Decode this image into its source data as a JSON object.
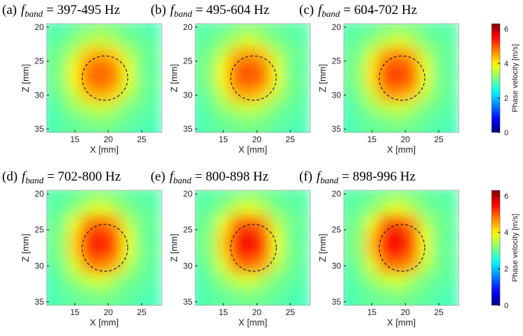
{
  "chart_data": [
    {
      "type": "heatmap",
      "label": "(a)",
      "title_symbol": "f",
      "title_subscript": "band",
      "title_text": "= 397-495 Hz",
      "xlabel": "X [mm]",
      "ylabel": "Z [mm]",
      "xlim": [
        10.8,
        28
      ],
      "ylim": [
        19.5,
        35.5
      ],
      "y_reversed": true,
      "xticks": [
        15,
        20,
        25
      ],
      "yticks": [
        20,
        25,
        30,
        35
      ],
      "clim": [
        0,
        6.3
      ],
      "x": [
        11,
        13,
        15,
        17,
        19,
        21,
        23,
        25,
        27
      ],
      "y": [
        20,
        22,
        24,
        26,
        28,
        30,
        32,
        34,
        36
      ],
      "values": [
        [
          2.9,
          2.8,
          3.0,
          3.1,
          3.2,
          3.1,
          3.0,
          2.9,
          2.8
        ],
        [
          2.9,
          3.0,
          3.2,
          3.5,
          3.6,
          3.4,
          3.1,
          3.0,
          2.9
        ],
        [
          3.0,
          3.1,
          3.6,
          4.3,
          4.5,
          4.2,
          3.5,
          3.1,
          3.0
        ],
        [
          3.0,
          3.2,
          4.0,
          4.8,
          4.9,
          4.7,
          3.8,
          3.1,
          2.9
        ],
        [
          3.0,
          3.2,
          4.0,
          4.8,
          4.9,
          4.7,
          3.8,
          3.1,
          3.0
        ],
        [
          2.9,
          3.1,
          3.6,
          4.3,
          4.5,
          4.2,
          3.5,
          3.1,
          2.9
        ],
        [
          2.8,
          3.0,
          3.3,
          3.5,
          3.6,
          3.4,
          3.1,
          3.0,
          2.9
        ],
        [
          2.8,
          2.9,
          3.0,
          3.1,
          3.2,
          3.1,
          3.0,
          2.9,
          2.8
        ],
        [
          2.8,
          2.9,
          3.0,
          3.0,
          3.0,
          3.0,
          2.9,
          2.8,
          2.8
        ]
      ]
    },
    {
      "type": "heatmap",
      "label": "(b)",
      "title_symbol": "f",
      "title_subscript": "band",
      "title_text": "= 495-604 Hz",
      "xlabel": "X [mm]",
      "ylabel": "Z [mm]",
      "xlim": [
        10.8,
        28
      ],
      "ylim": [
        19.5,
        35.5
      ],
      "y_reversed": true,
      "xticks": [
        15,
        20,
        25
      ],
      "yticks": [
        20,
        25,
        30,
        35
      ],
      "clim": [
        0,
        6.3
      ],
      "x": [
        11,
        13,
        15,
        17,
        19,
        21,
        23,
        25,
        27
      ],
      "y": [
        20,
        22,
        24,
        26,
        28,
        30,
        32,
        34,
        36
      ],
      "values": [
        [
          2.9,
          2.9,
          3.0,
          3.1,
          3.2,
          3.1,
          3.0,
          2.9,
          2.9
        ],
        [
          2.9,
          3.0,
          3.2,
          3.5,
          3.7,
          3.4,
          3.1,
          3.0,
          2.9
        ],
        [
          3.0,
          3.1,
          3.6,
          4.4,
          4.6,
          4.3,
          3.5,
          3.1,
          3.0
        ],
        [
          3.0,
          3.2,
          4.0,
          4.9,
          5.0,
          4.8,
          3.8,
          3.1,
          2.9
        ],
        [
          3.0,
          3.2,
          4.0,
          4.9,
          5.0,
          4.8,
          3.8,
          3.1,
          3.0
        ],
        [
          2.9,
          3.1,
          3.6,
          4.4,
          4.5,
          4.2,
          3.5,
          3.1,
          2.9
        ],
        [
          2.8,
          3.0,
          3.3,
          3.5,
          3.6,
          3.4,
          3.1,
          3.0,
          2.9
        ],
        [
          2.8,
          2.9,
          3.0,
          3.1,
          3.2,
          3.1,
          3.0,
          2.9,
          2.8
        ],
        [
          2.8,
          2.9,
          3.0,
          3.0,
          3.0,
          3.0,
          2.9,
          2.8,
          2.8
        ]
      ]
    },
    {
      "type": "heatmap",
      "label": "(c)",
      "title_symbol": "f",
      "title_subscript": "band",
      "title_text": "= 604-702 Hz",
      "xlabel": "X [mm]",
      "ylabel": "Z [mm]",
      "xlim": [
        10.8,
        28
      ],
      "ylim": [
        19.5,
        35.5
      ],
      "y_reversed": true,
      "xticks": [
        15,
        20,
        25
      ],
      "yticks": [
        20,
        25,
        30,
        35
      ],
      "clim": [
        0,
        6.3
      ],
      "colorbar": {
        "label": "Phase velocity [m/s]",
        "ticks": [
          0,
          2,
          4,
          6
        ]
      },
      "x": [
        11,
        13,
        15,
        17,
        19,
        21,
        23,
        25,
        27
      ],
      "y": [
        20,
        22,
        24,
        26,
        28,
        30,
        32,
        34,
        36
      ],
      "values": [
        [
          2.9,
          2.9,
          3.0,
          3.1,
          3.2,
          3.1,
          3.0,
          2.9,
          2.9
        ],
        [
          2.9,
          3.0,
          3.2,
          3.5,
          3.7,
          3.5,
          3.1,
          3.0,
          2.9
        ],
        [
          3.0,
          3.1,
          3.7,
          4.5,
          4.7,
          4.4,
          3.5,
          3.1,
          3.0
        ],
        [
          3.0,
          3.2,
          4.1,
          5.0,
          5.1,
          4.9,
          3.8,
          3.1,
          2.9
        ],
        [
          3.0,
          3.2,
          4.1,
          5.0,
          5.1,
          4.9,
          3.8,
          3.1,
          3.0
        ],
        [
          2.9,
          3.1,
          3.6,
          4.5,
          4.6,
          4.3,
          3.5,
          3.1,
          2.9
        ],
        [
          2.8,
          3.0,
          3.3,
          3.5,
          3.6,
          3.4,
          3.1,
          3.0,
          2.9
        ],
        [
          2.8,
          2.9,
          3.0,
          3.1,
          3.2,
          3.1,
          3.0,
          2.9,
          2.8
        ],
        [
          2.8,
          2.9,
          3.0,
          3.0,
          3.0,
          3.0,
          2.9,
          2.8,
          2.8
        ]
      ]
    },
    {
      "type": "heatmap",
      "label": "(d)",
      "title_symbol": "f",
      "title_subscript": "band",
      "title_text": "= 702-800 Hz",
      "xlabel": "X [mm]",
      "ylabel": "Z [mm]",
      "xlim": [
        10.8,
        28
      ],
      "ylim": [
        19.5,
        35.5
      ],
      "y_reversed": true,
      "xticks": [
        15,
        20,
        25
      ],
      "yticks": [
        20,
        25,
        30,
        35
      ],
      "clim": [
        0,
        6.3
      ],
      "x": [
        11,
        13,
        15,
        17,
        19,
        21,
        23,
        25,
        27
      ],
      "y": [
        20,
        22,
        24,
        26,
        28,
        30,
        32,
        34,
        36
      ],
      "values": [
        [
          2.9,
          2.9,
          3.0,
          3.1,
          3.2,
          3.1,
          3.0,
          2.9,
          2.9
        ],
        [
          2.9,
          3.0,
          3.2,
          3.6,
          3.8,
          3.5,
          3.1,
          3.0,
          2.9
        ],
        [
          3.0,
          3.1,
          3.8,
          4.7,
          4.9,
          4.5,
          3.5,
          3.1,
          3.0
        ],
        [
          3.0,
          3.2,
          4.2,
          5.2,
          5.4,
          5.0,
          3.8,
          3.1,
          2.9
        ],
        [
          3.0,
          3.2,
          4.2,
          5.2,
          5.3,
          5.0,
          3.8,
          3.1,
          3.0
        ],
        [
          2.9,
          3.1,
          3.7,
          4.6,
          4.8,
          4.4,
          3.5,
          3.1,
          2.9
        ],
        [
          2.8,
          3.0,
          3.3,
          3.6,
          3.7,
          3.4,
          3.1,
          3.0,
          2.9
        ],
        [
          2.8,
          2.9,
          3.0,
          3.1,
          3.2,
          3.1,
          3.0,
          2.9,
          2.8
        ],
        [
          2.8,
          2.9,
          3.0,
          3.0,
          3.0,
          3.0,
          2.9,
          2.8,
          2.8
        ]
      ]
    },
    {
      "type": "heatmap",
      "label": "(e)",
      "title_symbol": "f",
      "title_subscript": "band",
      "title_text": "= 800-898 Hz",
      "xlabel": "X [mm]",
      "ylabel": "Z [mm]",
      "xlim": [
        10.8,
        28
      ],
      "ylim": [
        19.5,
        35.5
      ],
      "y_reversed": true,
      "xticks": [
        15,
        20,
        25
      ],
      "yticks": [
        20,
        25,
        30,
        35
      ],
      "clim": [
        0,
        6.3
      ],
      "x": [
        11,
        13,
        15,
        17,
        19,
        21,
        23,
        25,
        27
      ],
      "y": [
        20,
        22,
        24,
        26,
        28,
        30,
        32,
        34,
        36
      ],
      "values": [
        [
          2.9,
          2.9,
          3.0,
          3.1,
          3.2,
          3.1,
          3.0,
          2.9,
          2.9
        ],
        [
          2.9,
          3.0,
          3.2,
          3.6,
          3.8,
          3.5,
          3.1,
          3.0,
          2.9
        ],
        [
          3.0,
          3.1,
          3.8,
          4.8,
          5.0,
          4.6,
          3.5,
          3.1,
          3.0
        ],
        [
          3.0,
          3.2,
          4.2,
          5.4,
          5.6,
          5.1,
          3.8,
          3.1,
          2.9
        ],
        [
          3.0,
          3.2,
          4.2,
          5.3,
          5.5,
          5.1,
          3.8,
          3.1,
          3.0
        ],
        [
          2.9,
          3.1,
          3.7,
          4.7,
          4.9,
          4.5,
          3.5,
          3.1,
          2.9
        ],
        [
          2.8,
          3.0,
          3.3,
          3.6,
          3.7,
          3.4,
          3.1,
          3.0,
          2.9
        ],
        [
          2.8,
          2.9,
          3.0,
          3.1,
          3.2,
          3.1,
          3.0,
          2.9,
          2.8
        ],
        [
          2.8,
          2.9,
          3.0,
          3.0,
          3.0,
          3.0,
          2.9,
          2.8,
          2.8
        ]
      ]
    },
    {
      "type": "heatmap",
      "label": "(f)",
      "title_symbol": "f",
      "title_subscript": "band",
      "title_text": "= 898-996 Hz",
      "xlabel": "X [mm]",
      "ylabel": "Z [mm]",
      "xlim": [
        10.8,
        28
      ],
      "ylim": [
        19.5,
        35.5
      ],
      "y_reversed": true,
      "xticks": [
        15,
        20,
        25
      ],
      "yticks": [
        20,
        25,
        30,
        35
      ],
      "clim": [
        0,
        6.3
      ],
      "colorbar": {
        "label": "Phase velocity [m/s]",
        "ticks": [
          0,
          2,
          4,
          6
        ]
      },
      "x": [
        11,
        13,
        15,
        17,
        19,
        21,
        23,
        25,
        27
      ],
      "y": [
        20,
        22,
        24,
        26,
        28,
        30,
        32,
        34,
        36
      ],
      "values": [
        [
          2.9,
          2.9,
          3.0,
          3.1,
          3.2,
          3.1,
          3.0,
          2.9,
          2.9
        ],
        [
          2.9,
          3.0,
          3.2,
          3.6,
          3.8,
          3.5,
          3.1,
          3.0,
          2.9
        ],
        [
          3.0,
          3.1,
          3.8,
          4.9,
          5.1,
          4.6,
          3.5,
          3.1,
          3.0
        ],
        [
          3.0,
          3.2,
          4.3,
          5.5,
          5.6,
          5.1,
          3.8,
          3.1,
          2.9
        ],
        [
          3.0,
          3.2,
          4.3,
          5.4,
          5.5,
          5.0,
          3.8,
          3.1,
          3.0
        ],
        [
          2.9,
          3.1,
          3.7,
          4.7,
          4.9,
          4.5,
          3.5,
          3.1,
          2.9
        ],
        [
          2.8,
          3.0,
          3.3,
          3.6,
          3.7,
          3.4,
          3.1,
          3.0,
          2.9
        ],
        [
          2.8,
          2.9,
          3.0,
          3.1,
          3.2,
          3.1,
          3.0,
          2.9,
          2.8
        ],
        [
          2.8,
          2.9,
          3.0,
          3.0,
          3.0,
          3.0,
          2.9,
          2.8,
          2.8
        ]
      ]
    }
  ]
}
